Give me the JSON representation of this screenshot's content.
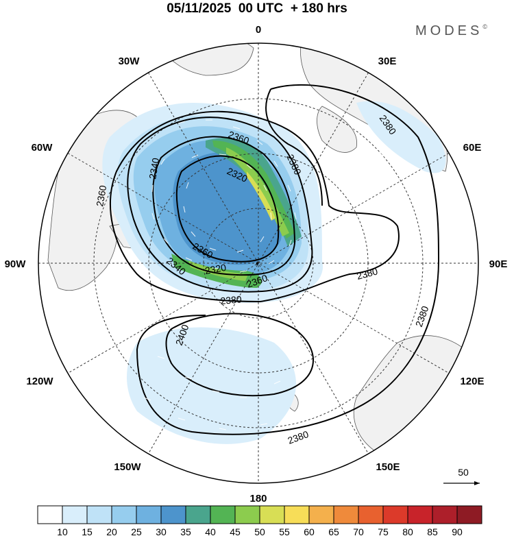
{
  "title": "05/11/2025  00 UTC  + 180 hrs",
  "brand": {
    "name": "MODES",
    "mark": "©"
  },
  "map": {
    "projection": "north-polar-stereographic",
    "longitude_labels": [
      "0",
      "30E",
      "60E",
      "90E",
      "120E",
      "150E",
      "180",
      "150W",
      "120W",
      "90W",
      "60W",
      "30W"
    ],
    "contour_interval": 20,
    "contour_labels": [
      "2360",
      "2340",
      "2320",
      "2380",
      "2360",
      "2340",
      "2320",
      "2360",
      "2380",
      "2380",
      "2380",
      "2400",
      "2380",
      "2380",
      "2360"
    ],
    "low_center_symbol": "•"
  },
  "vector_reference": {
    "value": "50"
  },
  "colorbar": {
    "ticks": [
      "10",
      "15",
      "20",
      "25",
      "30",
      "35",
      "40",
      "45",
      "50",
      "55",
      "60",
      "65",
      "70",
      "75",
      "80",
      "85",
      "90"
    ],
    "colors": [
      "#ffffff",
      "#d9eefb",
      "#bfe2f7",
      "#96cdee",
      "#6eb1e0",
      "#4d94cc",
      "#4aa58d",
      "#53b454",
      "#8ccc4e",
      "#d8de55",
      "#f7dd58",
      "#f4b04c",
      "#ef8a3b",
      "#e8612f",
      "#dc3a2a",
      "#c8232a",
      "#ad1f2a",
      "#8e1b24"
    ]
  }
}
